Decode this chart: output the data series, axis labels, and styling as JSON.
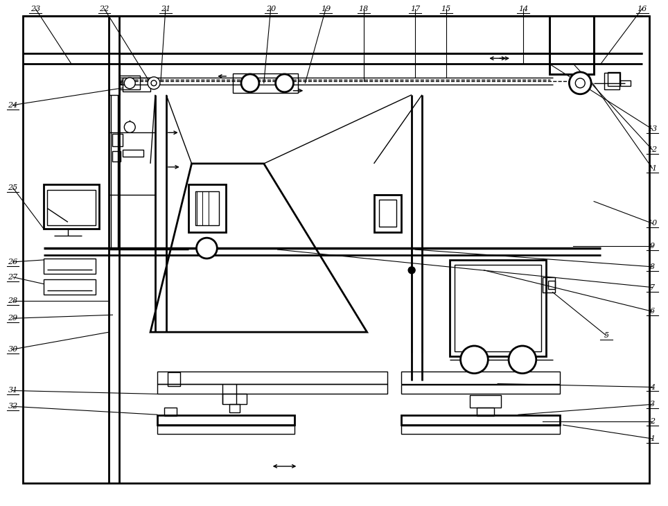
{
  "bg_color": "#ffffff",
  "fig_width": 9.64,
  "fig_height": 7.3,
  "lw": 1.0,
  "lw2": 2.0,
  "lw3": 2.5
}
